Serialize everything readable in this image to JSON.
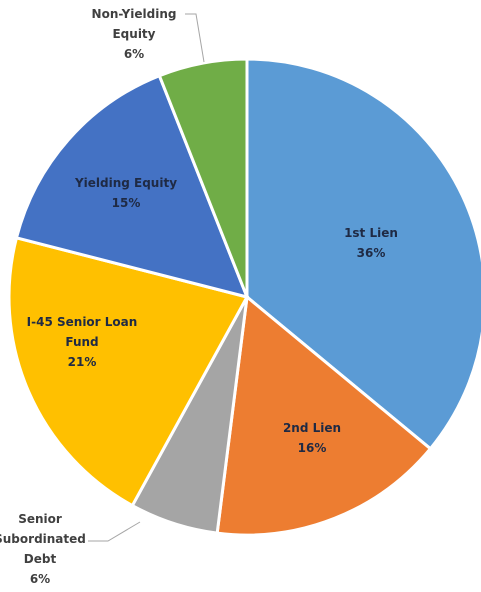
{
  "chart_data": {
    "type": "pie",
    "title": "",
    "start_angle_deg": 0,
    "direction": "clockwise",
    "slices": [
      {
        "label_lines": [
          "1st Lien"
        ],
        "percent_label": "36%",
        "value": 36,
        "color": "#5B9BD5",
        "label_color": "#1f2a44"
      },
      {
        "label_lines": [
          "2nd Lien"
        ],
        "percent_label": "16%",
        "value": 16,
        "color": "#ED7D31",
        "label_color": "#1f2a44"
      },
      {
        "label_lines": [
          "Senior",
          "Subordinated",
          "Debt"
        ],
        "percent_label": "6%",
        "value": 6,
        "color": "#A5A5A5",
        "label_color": "#404040",
        "outside": true
      },
      {
        "label_lines": [
          "I-45 Senior Loan",
          "Fund"
        ],
        "percent_label": "21%",
        "value": 21,
        "color": "#FFC000",
        "label_color": "#1f2a44"
      },
      {
        "label_lines": [
          "Yielding Equity"
        ],
        "percent_label": "15%",
        "value": 15,
        "color": "#4472C4",
        "label_color": "#1f2a44"
      },
      {
        "label_lines": [
          "Non-Yielding",
          "Equity"
        ],
        "percent_label": "6%",
        "value": 6,
        "color": "#70AD47",
        "label_color": "#404040",
        "outside": true
      }
    ]
  }
}
